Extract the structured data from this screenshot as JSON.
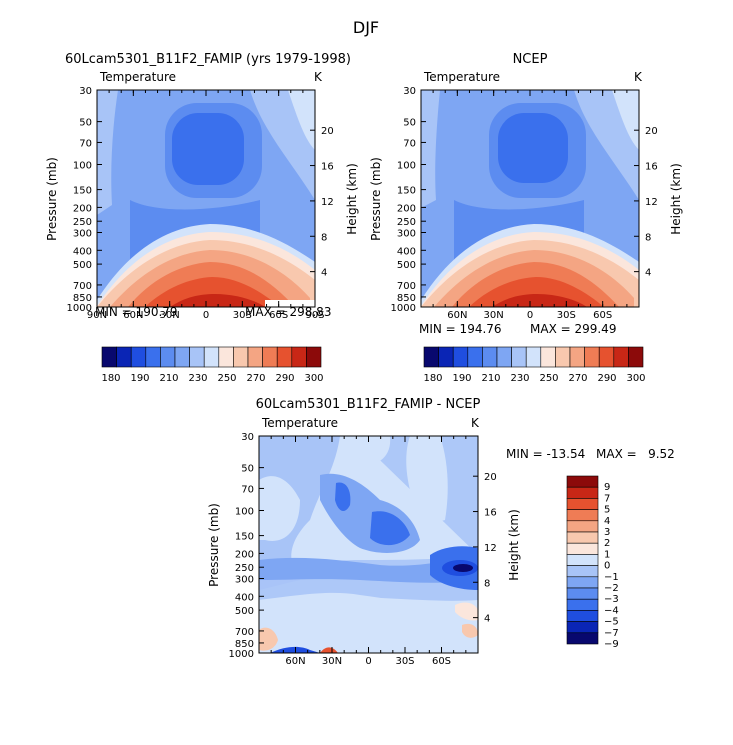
{
  "figure_title": "DJF",
  "colors": {
    "levels": [
      "#08086e",
      "#0a25b5",
      "#1f4ee0",
      "#3a70ed",
      "#5c8cf0",
      "#7ea6f3",
      "#a8c4f7",
      "#d2e3fb",
      "#fbe6dc",
      "#f8c8ae",
      "#f4a583",
      "#ef7c55",
      "#e6522f",
      "#c82716",
      "#8c0a0a"
    ]
  },
  "chart_data": [
    {
      "type": "heatmap",
      "title": "60Lcam5301_B11F2_FAMIP (yrs 1979-1998)",
      "field_label": "Temperature",
      "units": "K",
      "ylabel": "Pressure (mb)",
      "ylabel_right": "Height (km)",
      "xlim": [
        90,
        -90
      ],
      "xticks": [
        {
          "v": 90,
          "t": "90N"
        },
        {
          "v": 60,
          "t": "60N"
        },
        {
          "v": 30,
          "t": "30N"
        },
        {
          "v": 0,
          "t": "0"
        },
        {
          "v": -30,
          "t": "30S"
        },
        {
          "v": -60,
          "t": "60S"
        },
        {
          "v": -90,
          "t": "90S"
        }
      ],
      "pressure_ticks": [
        30,
        50,
        70,
        100,
        150,
        200,
        250,
        300,
        400,
        500,
        700,
        850,
        1000
      ],
      "height_ticks": [
        4,
        8,
        12,
        16,
        20
      ],
      "min_text": "MIN = 190.79",
      "max_text": "MAX = 298.83",
      "colorbar_labels": [
        "180",
        "190",
        "210",
        "230",
        "250",
        "270",
        "290",
        "300"
      ],
      "levels": [
        180,
        190,
        200,
        210,
        220,
        230,
        240,
        250,
        260,
        270,
        280,
        290,
        300
      ]
    },
    {
      "type": "heatmap",
      "title": "NCEP",
      "field_label": "Temperature",
      "units": "K",
      "ylabel": "Pressure (mb)",
      "ylabel_right": "Height (km)",
      "xlim": [
        90,
        -90
      ],
      "xticks": [
        {
          "v": 60,
          "t": "60N"
        },
        {
          "v": 30,
          "t": "30N"
        },
        {
          "v": 0,
          "t": "0"
        },
        {
          "v": -30,
          "t": "30S"
        },
        {
          "v": -60,
          "t": "60S"
        }
      ],
      "pressure_ticks": [
        30,
        50,
        70,
        100,
        150,
        200,
        250,
        300,
        400,
        500,
        700,
        850,
        1000
      ],
      "height_ticks": [
        4,
        8,
        12,
        16,
        20
      ],
      "min_text": "MIN = 194.76",
      "max_text": "MAX = 299.49",
      "colorbar_labels": [
        "180",
        "190",
        "210",
        "230",
        "250",
        "270",
        "290",
        "300"
      ],
      "levels": [
        180,
        190,
        200,
        210,
        220,
        230,
        240,
        250,
        260,
        270,
        280,
        290,
        300
      ]
    },
    {
      "type": "heatmap",
      "title": "60Lcam5301_B11F2_FAMIP - NCEP",
      "field_label": "Temperature",
      "units": "K",
      "ylabel": "Pressure (mb)",
      "ylabel_right": "Height (km)",
      "xlim": [
        90,
        -90
      ],
      "xticks": [
        {
          "v": 60,
          "t": "60N"
        },
        {
          "v": 30,
          "t": "30N"
        },
        {
          "v": 0,
          "t": "0"
        },
        {
          "v": -30,
          "t": "30S"
        },
        {
          "v": -60,
          "t": "60S"
        }
      ],
      "pressure_ticks": [
        30,
        50,
        70,
        100,
        150,
        200,
        250,
        300,
        400,
        500,
        700,
        850,
        1000
      ],
      "height_ticks": [
        4,
        8,
        12,
        16,
        20
      ],
      "min_label": "MIN = -13.54",
      "max_label": "MAX =   9.52",
      "colorbar_labels": [
        "9",
        "7",
        "5",
        "4",
        "3",
        "2",
        "1",
        "0",
        "−1",
        "−2",
        "−3",
        "−4",
        "−5",
        "−7",
        "−9"
      ],
      "levels": [
        -9,
        -7,
        -5,
        -4,
        -3,
        -2,
        -1,
        0,
        1,
        2,
        3,
        4,
        5,
        7,
        9
      ]
    }
  ]
}
